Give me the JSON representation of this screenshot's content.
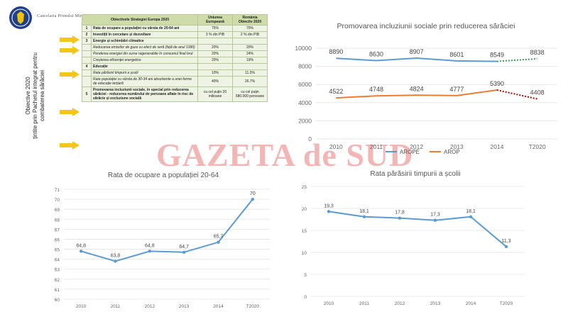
{
  "header": {
    "org_name": "Cancelaria Primului Ministru"
  },
  "left_panel": {
    "vertical_title_lines": [
      "Obiective 2020",
      "țintite prin Pachetul integrat pentru",
      "combaterea sărăciei"
    ]
  },
  "table": {
    "headers": [
      "Obiectivele Strategiei Europa 2020",
      "Uniunea Europeană",
      "România"
    ],
    "header_sub": "Obiectiv 2020",
    "rows": [
      {
        "num": "1",
        "text": "Rata de ocupare a populației cu vârsta de 20-64 ani",
        "eu": "75%",
        "ro": "70%",
        "bold": true
      },
      {
        "num": "2",
        "text": "Investiții în cercetare și dezvoltare",
        "eu": "3 % din PIB",
        "ro": "2 % din PIB",
        "bold": true
      },
      {
        "num": "3",
        "text": "Energie și schimbări climatice",
        "eu": "",
        "ro": "",
        "section": true
      },
      {
        "num": "",
        "text": "Reducerea emisiilor de gaze cu efect de seră (față de anul 1990)",
        "eu": "20%",
        "ro": "20%",
        "ital": true
      },
      {
        "num": "",
        "text": "Ponderea energiei din surse regenerabile în consumul final brut",
        "eu": "20%",
        "ro": "24%",
        "ital": true
      },
      {
        "num": "",
        "text": "Creșterea eficienței energetice",
        "eu": "20%",
        "ro": "19%",
        "ital": true
      },
      {
        "num": "4",
        "text": "Educație",
        "eu": "",
        "ro": "",
        "section": true
      },
      {
        "num": "",
        "text": "Rata părăsirii timpurii a școlii",
        "eu": "10%",
        "ro": "11.3%",
        "ital": true
      },
      {
        "num": "",
        "text": "Rata populației cu vârsta de 30-34 ani absolvente a unei forme de educație terțiară",
        "eu": "40%",
        "ro": "26.7%",
        "ital": true
      },
      {
        "num": "5",
        "text": "Promovarea incluziunii sociale, în special prin reducerea sărăciei - reducerea numărului de persoane aflate în risc de sărăcie și excluziune socială",
        "eu": "cu cel puțin 20 milioane",
        "ro": "cu cel puțin 580.000 persoane",
        "bold": true
      }
    ]
  },
  "watermark": "GAZETA de SUD",
  "colors": {
    "arope": "#5b9bd5",
    "arop": "#ed7d31",
    "arope_proj": "#3a9e5a",
    "arop_proj": "#c00000",
    "line": "#5b9bd5",
    "arrow": "#f5c518"
  },
  "chart_data": [
    {
      "type": "line",
      "title": "Promovarea incluziunii sociale prin reducerea sărăciei",
      "categories": [
        "2010",
        "2011",
        "2012",
        "2013",
        "2014",
        "T2020"
      ],
      "ylim": [
        0,
        10000
      ],
      "yticks": [
        "0",
        "2000",
        "4000",
        "6000",
        "8000",
        "10000"
      ],
      "legend": "bottom",
      "series": [
        {
          "name": "AROPE",
          "values": [
            8890,
            8630,
            8907,
            8601,
            8549,
            8838
          ],
          "labels": [
            "8890",
            "8630",
            "8907",
            "8601",
            "8549",
            "8838"
          ]
        },
        {
          "name": "AROP",
          "values": [
            4522,
            4748,
            4824,
            4777,
            5390,
            4408
          ],
          "labels": [
            "4522",
            "4748",
            "4824",
            "4777",
            "5390",
            "4408"
          ]
        }
      ]
    },
    {
      "type": "line",
      "title": "Rata de ocupare a populației 20-64",
      "categories": [
        "2010",
        "2011",
        "2012",
        "2013",
        "2014",
        "T2020"
      ],
      "ylim": [
        60,
        71
      ],
      "yticks": [
        "60",
        "61",
        "62",
        "63",
        "64",
        "65",
        "66",
        "67",
        "68",
        "69",
        "70",
        "71"
      ],
      "series": [
        {
          "values": [
            64.8,
            63.8,
            64.8,
            64.7,
            65.7,
            70
          ],
          "labels": [
            "64,8",
            "63,8",
            "64,8",
            "64,7",
            "65,7",
            "70"
          ]
        }
      ]
    },
    {
      "type": "line",
      "title": "Rata părăsirii timpurii a școlii",
      "categories": [
        "2010",
        "2011",
        "2012",
        "2013",
        "2014",
        "T2020"
      ],
      "ylim": [
        0,
        25
      ],
      "yticks": [
        "0",
        "5",
        "10",
        "15",
        "20",
        "25"
      ],
      "series": [
        {
          "values": [
            19.3,
            18.1,
            17.8,
            17.3,
            18.1,
            11.3
          ],
          "labels": [
            "19,3",
            "18,1",
            "17,8",
            "17,3",
            "18,1",
            "11,3"
          ]
        }
      ]
    }
  ]
}
